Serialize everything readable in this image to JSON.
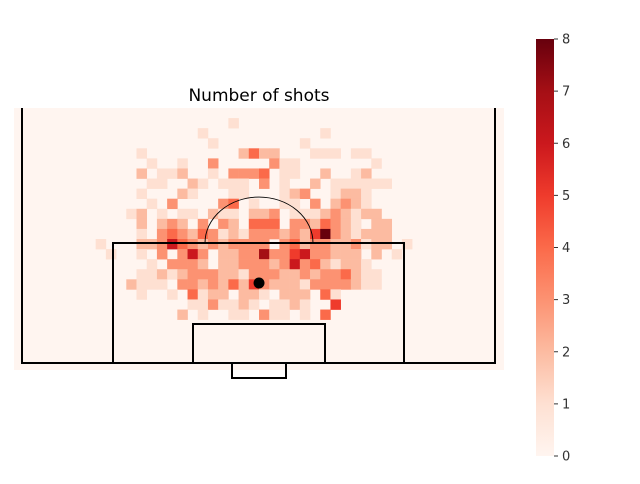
{
  "chart_data": {
    "type": "heatmap",
    "title": "Number of shots",
    "colorbar": {
      "min": 0,
      "max": 8,
      "ticks": [
        "0",
        "1",
        "2",
        "3",
        "4",
        "5",
        "6",
        "7",
        "8"
      ],
      "colormap": "Reds"
    },
    "grid": {
      "rows": 26,
      "cols": 48,
      "cell_values_note_free": true,
      "cells": [
        [
          1,
          21,
          1
        ],
        [
          2,
          18,
          1
        ],
        [
          2,
          30,
          1
        ],
        [
          3,
          19,
          1
        ],
        [
          3,
          28,
          1
        ],
        [
          4,
          12,
          1
        ],
        [
          4,
          22,
          2
        ],
        [
          4,
          23,
          4
        ],
        [
          4,
          24,
          2
        ],
        [
          4,
          25,
          2
        ],
        [
          4,
          29,
          1
        ],
        [
          4,
          30,
          1
        ],
        [
          4,
          31,
          1
        ],
        [
          4,
          33,
          1
        ],
        [
          4,
          34,
          1
        ],
        [
          5,
          13,
          1
        ],
        [
          5,
          16,
          1
        ],
        [
          5,
          19,
          3
        ],
        [
          5,
          25,
          3
        ],
        [
          5,
          26,
          1
        ],
        [
          5,
          27,
          1
        ],
        [
          5,
          35,
          1
        ],
        [
          6,
          12,
          2
        ],
        [
          6,
          14,
          1
        ],
        [
          6,
          15,
          1
        ],
        [
          6,
          16,
          2
        ],
        [
          6,
          19,
          1
        ],
        [
          6,
          21,
          3
        ],
        [
          6,
          22,
          3
        ],
        [
          6,
          23,
          3
        ],
        [
          6,
          24,
          4
        ],
        [
          6,
          26,
          1
        ],
        [
          6,
          27,
          1
        ],
        [
          6,
          30,
          2
        ],
        [
          6,
          33,
          1
        ],
        [
          6,
          34,
          2
        ],
        [
          7,
          13,
          1
        ],
        [
          7,
          14,
          1
        ],
        [
          7,
          17,
          2
        ],
        [
          7,
          18,
          1
        ],
        [
          7,
          20,
          1
        ],
        [
          7,
          21,
          1
        ],
        [
          7,
          22,
          1
        ],
        [
          7,
          24,
          3
        ],
        [
          7,
          26,
          1
        ],
        [
          7,
          29,
          2
        ],
        [
          7,
          31,
          1
        ],
        [
          7,
          32,
          1
        ],
        [
          7,
          33,
          1
        ],
        [
          7,
          34,
          1
        ],
        [
          7,
          35,
          1
        ],
        [
          7,
          36,
          1
        ],
        [
          8,
          12,
          1
        ],
        [
          8,
          16,
          2
        ],
        [
          8,
          17,
          1
        ],
        [
          8,
          21,
          1
        ],
        [
          8,
          22,
          1
        ],
        [
          8,
          26,
          1
        ],
        [
          8,
          27,
          2
        ],
        [
          8,
          28,
          3
        ],
        [
          8,
          31,
          1
        ],
        [
          8,
          32,
          2
        ],
        [
          8,
          33,
          2
        ],
        [
          8,
          34,
          1
        ],
        [
          9,
          13,
          1
        ],
        [
          9,
          15,
          3
        ],
        [
          9,
          20,
          3
        ],
        [
          9,
          21,
          4
        ],
        [
          9,
          23,
          1
        ],
        [
          9,
          26,
          1
        ],
        [
          9,
          27,
          1
        ],
        [
          9,
          29,
          3
        ],
        [
          9,
          31,
          2
        ],
        [
          9,
          32,
          3
        ],
        [
          9,
          33,
          2
        ],
        [
          9,
          34,
          1
        ],
        [
          10,
          11,
          1
        ],
        [
          10,
          12,
          2
        ],
        [
          10,
          14,
          1
        ],
        [
          10,
          16,
          1
        ],
        [
          10,
          17,
          1
        ],
        [
          10,
          19,
          2
        ],
        [
          10,
          20,
          1
        ],
        [
          10,
          21,
          1
        ],
        [
          10,
          23,
          2
        ],
        [
          10,
          24,
          2
        ],
        [
          10,
          25,
          3
        ],
        [
          10,
          27,
          1
        ],
        [
          10,
          28,
          1
        ],
        [
          10,
          29,
          1
        ],
        [
          10,
          30,
          2
        ],
        [
          10,
          31,
          3
        ],
        [
          10,
          32,
          2
        ],
        [
          10,
          33,
          1
        ],
        [
          10,
          34,
          2
        ],
        [
          10,
          35,
          2
        ],
        [
          11,
          12,
          2
        ],
        [
          11,
          14,
          2
        ],
        [
          11,
          15,
          3
        ],
        [
          11,
          16,
          2
        ],
        [
          11,
          18,
          3
        ],
        [
          11,
          20,
          3
        ],
        [
          11,
          21,
          2
        ],
        [
          11,
          23,
          4
        ],
        [
          11,
          24,
          4
        ],
        [
          11,
          25,
          4
        ],
        [
          11,
          27,
          3
        ],
        [
          11,
          28,
          3
        ],
        [
          11,
          29,
          2
        ],
        [
          11,
          30,
          4
        ],
        [
          11,
          31,
          3
        ],
        [
          11,
          32,
          2
        ],
        [
          11,
          33,
          1
        ],
        [
          11,
          35,
          2
        ],
        [
          11,
          36,
          2
        ],
        [
          12,
          12,
          1
        ],
        [
          12,
          14,
          3
        ],
        [
          12,
          15,
          4
        ],
        [
          12,
          16,
          3
        ],
        [
          12,
          17,
          2
        ],
        [
          12,
          18,
          4
        ],
        [
          12,
          19,
          3
        ],
        [
          12,
          20,
          1
        ],
        [
          12,
          21,
          2
        ],
        [
          12,
          22,
          1
        ],
        [
          12,
          23,
          3
        ],
        [
          12,
          24,
          3
        ],
        [
          12,
          25,
          3
        ],
        [
          12,
          26,
          2
        ],
        [
          12,
          27,
          3
        ],
        [
          12,
          28,
          2
        ],
        [
          12,
          29,
          5
        ],
        [
          12,
          30,
          8
        ],
        [
          12,
          31,
          3
        ],
        [
          12,
          32,
          2
        ],
        [
          12,
          33,
          1
        ],
        [
          12,
          34,
          2
        ],
        [
          12,
          35,
          2
        ],
        [
          12,
          36,
          2
        ],
        [
          13,
          8,
          1
        ],
        [
          13,
          12,
          2
        ],
        [
          13,
          13,
          2
        ],
        [
          13,
          14,
          3
        ],
        [
          13,
          15,
          6
        ],
        [
          13,
          16,
          4
        ],
        [
          13,
          17,
          3
        ],
        [
          13,
          18,
          2
        ],
        [
          13,
          19,
          3
        ],
        [
          13,
          20,
          2
        ],
        [
          13,
          21,
          3
        ],
        [
          13,
          22,
          3
        ],
        [
          13,
          23,
          3
        ],
        [
          13,
          24,
          3
        ],
        [
          13,
          26,
          3
        ],
        [
          13,
          27,
          4
        ],
        [
          13,
          28,
          2
        ],
        [
          13,
          29,
          3
        ],
        [
          13,
          30,
          3
        ],
        [
          13,
          31,
          2
        ],
        [
          13,
          32,
          2
        ],
        [
          13,
          33,
          3
        ],
        [
          13,
          34,
          1
        ],
        [
          13,
          35,
          2
        ],
        [
          13,
          36,
          2
        ],
        [
          13,
          38,
          1
        ],
        [
          14,
          9,
          1
        ],
        [
          14,
          12,
          1
        ],
        [
          14,
          14,
          3
        ],
        [
          14,
          16,
          3
        ],
        [
          14,
          17,
          6
        ],
        [
          14,
          18,
          3
        ],
        [
          14,
          20,
          2
        ],
        [
          14,
          21,
          2
        ],
        [
          14,
          22,
          3
        ],
        [
          14,
          23,
          3
        ],
        [
          14,
          24,
          7
        ],
        [
          14,
          25,
          3
        ],
        [
          14,
          26,
          3
        ],
        [
          14,
          27,
          5
        ],
        [
          14,
          28,
          6
        ],
        [
          14,
          29,
          3
        ],
        [
          14,
          30,
          3
        ],
        [
          14,
          31,
          2
        ],
        [
          14,
          32,
          2
        ],
        [
          14,
          33,
          2
        ],
        [
          14,
          35,
          2
        ],
        [
          14,
          37,
          1
        ],
        [
          15,
          13,
          1
        ],
        [
          15,
          15,
          3
        ],
        [
          15,
          16,
          3
        ],
        [
          15,
          17,
          3
        ],
        [
          15,
          18,
          2
        ],
        [
          15,
          20,
          2
        ],
        [
          15,
          21,
          2
        ],
        [
          15,
          22,
          3
        ],
        [
          15,
          23,
          3
        ],
        [
          15,
          24,
          3
        ],
        [
          15,
          25,
          2
        ],
        [
          15,
          26,
          3
        ],
        [
          15,
          27,
          6
        ],
        [
          15,
          28,
          3
        ],
        [
          15,
          29,
          4
        ],
        [
          15,
          30,
          2
        ],
        [
          15,
          31,
          1
        ],
        [
          15,
          32,
          2
        ],
        [
          15,
          33,
          2
        ],
        [
          15,
          34,
          1
        ],
        [
          16,
          12,
          1
        ],
        [
          16,
          13,
          1
        ],
        [
          16,
          14,
          2
        ],
        [
          16,
          15,
          1
        ],
        [
          16,
          16,
          2
        ],
        [
          16,
          17,
          3
        ],
        [
          16,
          18,
          3
        ],
        [
          16,
          19,
          3
        ],
        [
          16,
          20,
          2
        ],
        [
          16,
          21,
          2
        ],
        [
          16,
          22,
          1
        ],
        [
          16,
          23,
          3
        ],
        [
          16,
          24,
          3
        ],
        [
          16,
          25,
          3
        ],
        [
          16,
          26,
          2
        ],
        [
          16,
          27,
          2
        ],
        [
          16,
          28,
          3
        ],
        [
          16,
          29,
          2
        ],
        [
          16,
          30,
          3
        ],
        [
          16,
          31,
          3
        ],
        [
          16,
          32,
          4
        ],
        [
          16,
          33,
          2
        ],
        [
          16,
          34,
          1
        ],
        [
          16,
          35,
          1
        ],
        [
          17,
          11,
          2
        ],
        [
          17,
          12,
          1
        ],
        [
          17,
          13,
          1
        ],
        [
          17,
          14,
          1
        ],
        [
          17,
          16,
          3
        ],
        [
          17,
          17,
          3
        ],
        [
          17,
          18,
          2
        ],
        [
          17,
          19,
          3
        ],
        [
          17,
          20,
          2
        ],
        [
          17,
          21,
          4
        ],
        [
          17,
          22,
          2
        ],
        [
          17,
          23,
          5
        ],
        [
          17,
          24,
          3
        ],
        [
          17,
          25,
          2
        ],
        [
          17,
          26,
          2
        ],
        [
          17,
          27,
          2
        ],
        [
          17,
          28,
          1
        ],
        [
          17,
          29,
          3
        ],
        [
          17,
          30,
          3
        ],
        [
          17,
          31,
          3
        ],
        [
          17,
          32,
          3
        ],
        [
          17,
          33,
          2
        ],
        [
          17,
          34,
          1
        ],
        [
          17,
          35,
          1
        ],
        [
          18,
          12,
          1
        ],
        [
          18,
          15,
          1
        ],
        [
          18,
          17,
          4
        ],
        [
          18,
          18,
          1
        ],
        [
          18,
          19,
          2
        ],
        [
          18,
          20,
          2
        ],
        [
          18,
          22,
          2
        ],
        [
          18,
          23,
          2
        ],
        [
          18,
          24,
          1
        ],
        [
          18,
          26,
          2
        ],
        [
          18,
          27,
          2
        ],
        [
          18,
          28,
          2
        ],
        [
          18,
          30,
          4
        ],
        [
          18,
          31,
          1
        ],
        [
          19,
          17,
          1
        ],
        [
          19,
          18,
          1
        ],
        [
          19,
          19,
          3
        ],
        [
          19,
          20,
          1
        ],
        [
          19,
          21,
          1
        ],
        [
          19,
          22,
          2
        ],
        [
          19,
          23,
          1
        ],
        [
          19,
          25,
          1
        ],
        [
          19,
          26,
          1
        ],
        [
          19,
          27,
          2
        ],
        [
          19,
          28,
          1
        ],
        [
          19,
          31,
          5
        ],
        [
          20,
          16,
          2
        ],
        [
          20,
          18,
          1
        ],
        [
          20,
          21,
          1
        ],
        [
          20,
          22,
          1
        ],
        [
          20,
          24,
          3
        ],
        [
          20,
          25,
          1
        ],
        [
          20,
          26,
          1
        ],
        [
          20,
          28,
          1
        ],
        [
          20,
          30,
          4
        ]
      ]
    },
    "pitch": {
      "penalty_spot": true,
      "penalty_arc": true,
      "six_yard_box": true,
      "penalty_box": true,
      "goal": true
    }
  }
}
